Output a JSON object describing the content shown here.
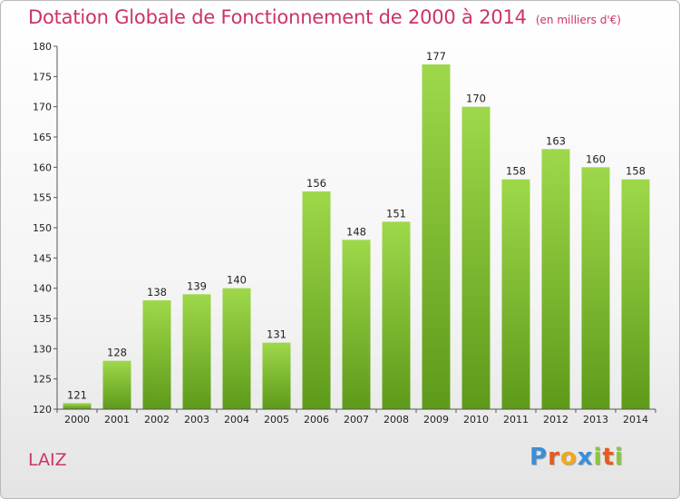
{
  "title": "Dotation Globale de Fonctionnement de 2000 à 2014",
  "unit": "(en milliers d'€)",
  "commune": "LAIZ",
  "logo": {
    "letters": [
      "P",
      "r",
      "o",
      "x",
      "i",
      "t",
      "i"
    ],
    "colors": [
      "#3a8fd8",
      "#e85a1e",
      "#f2a81d",
      "#3a8fd8",
      "#8cc63e",
      "#e85a1e",
      "#8cc63e"
    ]
  },
  "colors": {
    "bar_top": "#9ed84a",
    "bar_bottom": "#5e9a1a",
    "title": "#cc3366"
  },
  "chart_data": {
    "type": "bar",
    "categories": [
      "2000",
      "2001",
      "2002",
      "2003",
      "2004",
      "2005",
      "2006",
      "2007",
      "2008",
      "2009",
      "2010",
      "2011",
      "2012",
      "2013",
      "2014"
    ],
    "values": [
      121,
      128,
      138,
      139,
      140,
      131,
      156,
      148,
      151,
      177,
      170,
      158,
      163,
      160,
      158
    ],
    "data_labels": [
      "121",
      "128",
      "138",
      "139",
      "140",
      "131",
      "156",
      "148",
      "151",
      "177",
      "170",
      "158",
      "163",
      "160",
      "158"
    ],
    "ylim": [
      120,
      180
    ],
    "yticks": [
      120,
      125,
      130,
      135,
      140,
      145,
      150,
      155,
      160,
      165,
      170,
      175,
      180
    ],
    "ytick_labels": [
      "120",
      "125",
      "130",
      "135",
      "140",
      "145",
      "150",
      "155",
      "160",
      "165",
      "170",
      "175",
      "180"
    ],
    "grid": false,
    "legend": "none"
  }
}
